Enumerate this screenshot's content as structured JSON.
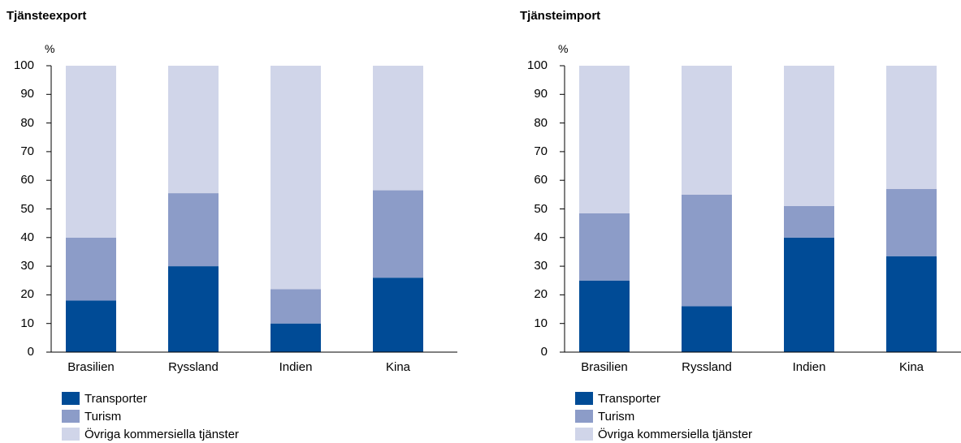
{
  "colors": {
    "Transporter": "#004b96",
    "Turism": "#8c9cc8",
    "Övriga kommersiella tjänster": "#d0d5e9",
    "axis": "#000000"
  },
  "chart_data": [
    {
      "type": "bar",
      "stacked": true,
      "title": "Tjänsteexport",
      "unit_label": "%",
      "categories": [
        "Brasilien",
        "Ryssland",
        "Indien",
        "Kina"
      ],
      "ylim": [
        0,
        100
      ],
      "yticks": [
        0,
        10,
        20,
        30,
        40,
        50,
        60,
        70,
        80,
        90,
        100
      ],
      "grid": false,
      "legend_position": "bottom-left",
      "series": [
        {
          "name": "Transporter",
          "values": [
            18,
            30,
            10,
            26
          ]
        },
        {
          "name": "Turism",
          "values": [
            22,
            25.5,
            12,
            30.5
          ]
        },
        {
          "name": "Övriga kommersiella tjänster",
          "values": [
            60,
            44.5,
            78,
            43.5
          ]
        }
      ]
    },
    {
      "type": "bar",
      "stacked": true,
      "title": "Tjänsteimport",
      "unit_label": "%",
      "categories": [
        "Brasilien",
        "Ryssland",
        "Indien",
        "Kina"
      ],
      "ylim": [
        0,
        100
      ],
      "yticks": [
        0,
        10,
        20,
        30,
        40,
        50,
        60,
        70,
        80,
        90,
        100
      ],
      "grid": false,
      "legend_position": "bottom-left",
      "series": [
        {
          "name": "Transporter",
          "values": [
            25,
            16,
            40,
            33.5
          ]
        },
        {
          "name": "Turism",
          "values": [
            23.5,
            39,
            11,
            23.5
          ]
        },
        {
          "name": "Övriga kommersiella tjänster",
          "values": [
            51.5,
            45,
            49,
            43
          ]
        }
      ]
    }
  ]
}
